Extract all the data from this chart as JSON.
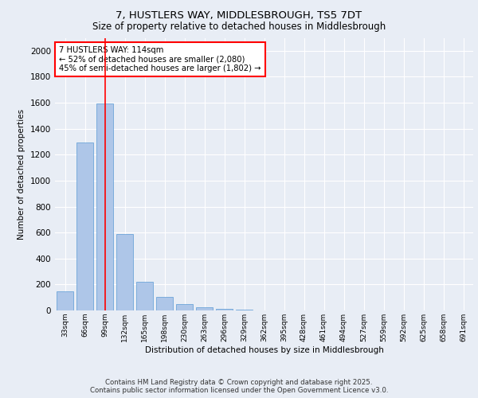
{
  "title_line1": "7, HUSTLERS WAY, MIDDLESBROUGH, TS5 7DT",
  "title_line2": "Size of property relative to detached houses in Middlesbrough",
  "xlabel": "Distribution of detached houses by size in Middlesbrough",
  "ylabel": "Number of detached properties",
  "categories": [
    "33sqm",
    "66sqm",
    "99sqm",
    "132sqm",
    "165sqm",
    "198sqm",
    "230sqm",
    "263sqm",
    "296sqm",
    "329sqm",
    "362sqm",
    "395sqm",
    "428sqm",
    "461sqm",
    "494sqm",
    "527sqm",
    "559sqm",
    "592sqm",
    "625sqm",
    "658sqm",
    "691sqm"
  ],
  "values": [
    145,
    1295,
    1595,
    590,
    220,
    103,
    48,
    22,
    12,
    5,
    0,
    0,
    0,
    0,
    0,
    0,
    0,
    0,
    0,
    0,
    0
  ],
  "bar_color": "#aec6e8",
  "bar_edge_color": "#5b9bd5",
  "vline_x": 2,
  "vline_color": "red",
  "annotation_text": "7 HUSTLERS WAY: 114sqm\n← 52% of detached houses are smaller (2,080)\n45% of semi-detached houses are larger (1,802) →",
  "annotation_box_color": "white",
  "annotation_edge_color": "red",
  "ylim": [
    0,
    2100
  ],
  "yticks": [
    0,
    200,
    400,
    600,
    800,
    1000,
    1200,
    1400,
    1600,
    1800,
    2000
  ],
  "footer_line1": "Contains HM Land Registry data © Crown copyright and database right 2025.",
  "footer_line2": "Contains public sector information licensed under the Open Government Licence v3.0.",
  "bg_color": "#e8edf5",
  "plot_bg_color": "#e8edf5"
}
